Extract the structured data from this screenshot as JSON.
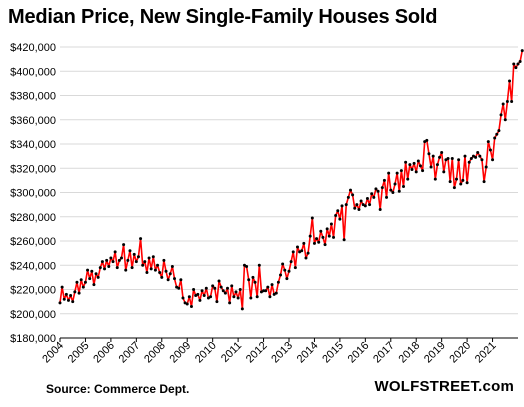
{
  "chart_data": {
    "type": "line",
    "title": "Median Price, New Single-Family Houses Sold",
    "xlabel": "",
    "ylabel": "",
    "source": "Source: Commerce Dept.",
    "brand": "WOLFSTREET.com",
    "xlim": [
      2004,
      2022
    ],
    "ylim": [
      180000,
      420000
    ],
    "y_ticks": [
      180000,
      200000,
      220000,
      240000,
      260000,
      280000,
      300000,
      320000,
      340000,
      360000,
      380000,
      400000,
      420000
    ],
    "y_tick_labels": [
      "$180,000",
      "$200,000",
      "$220,000",
      "$240,000",
      "$260,000",
      "$280,000",
      "$300,000",
      "$320,000",
      "$340,000",
      "$360,000",
      "$380,000",
      "$400,000",
      "$420,000"
    ],
    "x_ticks": [
      2004,
      2005,
      2006,
      2007,
      2008,
      2009,
      2010,
      2011,
      2012,
      2013,
      2014,
      2015,
      2016,
      2017,
      2018,
      2019,
      2020,
      2021
    ],
    "x_tick_labels": [
      "2004",
      "2005",
      "2006",
      "2007",
      "2008",
      "2009",
      "2010",
      "2011",
      "2012",
      "2013",
      "2014",
      "2015",
      "2016",
      "2017",
      "2018",
      "2019",
      "2020",
      "2021"
    ],
    "grid": "horizontal",
    "line_color": "#ff0000",
    "marker_color": "#000000",
    "series": [
      {
        "start": "2004-01",
        "frequency": "monthly",
        "values": [
          209000,
          222000,
          212000,
          216000,
          211000,
          215000,
          210000,
          218000,
          226000,
          217000,
          228000,
          222000,
          226000,
          236000,
          229000,
          235000,
          224000,
          233000,
          230000,
          238000,
          243000,
          237000,
          244000,
          239000,
          246000,
          243000,
          251000,
          238000,
          244000,
          246000,
          257000,
          236000,
          244000,
          252000,
          238000,
          249000,
          243000,
          247000,
          262000,
          240000,
          243000,
          234000,
          246000,
          237000,
          247000,
          236000,
          240000,
          234000,
          230000,
          244000,
          235000,
          228000,
          233000,
          239000,
          229000,
          222000,
          221000,
          228000,
          213000,
          209000,
          208000,
          214000,
          206000,
          220000,
          215000,
          216000,
          211000,
          219000,
          215000,
          221000,
          213000,
          214000,
          223000,
          221000,
          210000,
          227000,
          222000,
          219000,
          217000,
          221000,
          209000,
          223000,
          214000,
          218000,
          213000,
          220000,
          204000,
          240000,
          239000,
          228000,
          213000,
          230000,
          226000,
          214000,
          240000,
          218000,
          219000,
          219000,
          222000,
          214000,
          224000,
          216000,
          217000,
          226000,
          232000,
          241000,
          236000,
          229000,
          235000,
          243000,
          251000,
          238000,
          255000,
          251000,
          252000,
          258000,
          246000,
          250000,
          264000,
          279000,
          258000,
          262000,
          259000,
          268000,
          263000,
          257000,
          270000,
          264000,
          274000,
          263000,
          281000,
          285000,
          278000,
          289000,
          261000,
          290000,
          296000,
          302000,
          298000,
          287000,
          290000,
          286000,
          293000,
          290000,
          289000,
          295000,
          290000,
          299000,
          296000,
          303000,
          301000,
          286000,
          304000,
          310000,
          296000,
          316000,
          302000,
          300000,
          307000,
          316000,
          301000,
          318000,
          305000,
          325000,
          311000,
          323000,
          319000,
          324000,
          317000,
          326000,
          322000,
          318000,
          342000,
          343000,
          332000,
          321000,
          330000,
          311000,
          323000,
          329000,
          333000,
          317000,
          327000,
          328000,
          309000,
          328000,
          304000,
          311000,
          327000,
          307000,
          310000,
          330000,
          308000,
          325000,
          328000,
          330000,
          329000,
          333000,
          330000,
          327000,
          309000,
          321000,
          342000,
          335000,
          327000,
          345000,
          348000,
          351000,
          364000,
          373000,
          360000,
          375000,
          392000,
          375000,
          406000,
          403000,
          406000,
          408000,
          417000
        ]
      }
    ]
  }
}
